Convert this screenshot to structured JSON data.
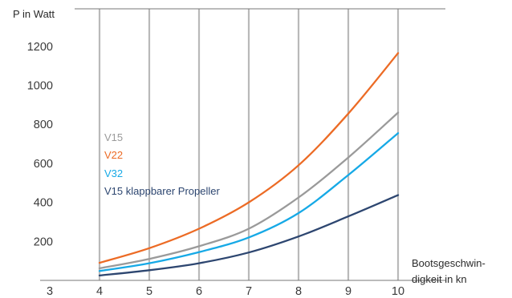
{
  "chart_data": {
    "type": "line",
    "ylabel": "P in Watt",
    "xlabel_line1": "Bootsgeschwin-",
    "xlabel_line2": "digkeit in kn",
    "xlim": [
      3,
      10
    ],
    "ylim": [
      0,
      1300
    ],
    "x_ticks": [
      "3",
      "4",
      "5",
      "6",
      "7",
      "8",
      "9",
      "10"
    ],
    "y_ticks": [
      "200",
      "400",
      "600",
      "800",
      "1000",
      "1200"
    ],
    "grid": "vertical",
    "legend_position": "center-left",
    "x": [
      4,
      5,
      6,
      7,
      8,
      9,
      10
    ],
    "series": [
      {
        "name": "V15",
        "color": "#9a9a9a",
        "values": [
          62,
          110,
          175,
          265,
          425,
          630,
          860
        ]
      },
      {
        "name": "V22",
        "color": "#ec6b25",
        "values": [
          90,
          165,
          265,
          400,
          590,
          855,
          1165
        ]
      },
      {
        "name": "V32",
        "color": "#16a9e6",
        "values": [
          48,
          88,
          145,
          220,
          345,
          540,
          755
        ]
      },
      {
        "name": "V15  klappbarer Propeller",
        "color": "#2d4670",
        "values": [
          25,
          52,
          88,
          143,
          225,
          328,
          437
        ]
      }
    ]
  }
}
